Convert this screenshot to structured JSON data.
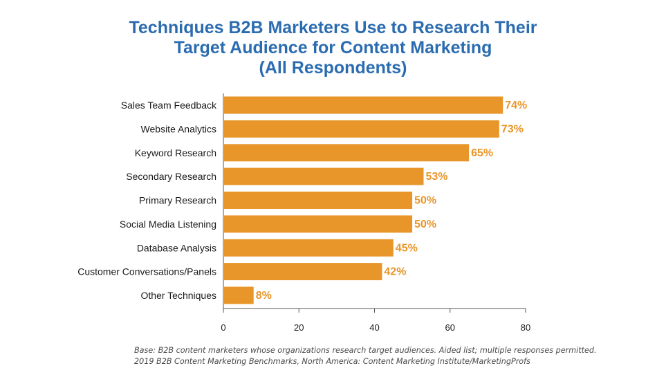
{
  "title": {
    "line1": "Techniques B2B Marketers Use to Research Their",
    "line2": "Target Audience for Content Marketing",
    "line3": "(All Respondents)"
  },
  "chart_data": {
    "type": "bar",
    "orientation": "horizontal",
    "title": "Techniques B2B Marketers Use to Research Their Target Audience for Content Marketing (All Respondents)",
    "categories": [
      "Sales Team Feedback",
      "Website Analytics",
      "Keyword Research",
      "Secondary Research",
      "Primary Research",
      "Social Media Listening",
      "Database Analysis",
      "Customer Conversations/Panels",
      "Other Techniques"
    ],
    "values": [
      74,
      73,
      65,
      53,
      50,
      50,
      45,
      42,
      8
    ],
    "data_labels": [
      "74%",
      "73%",
      "65%",
      "53%",
      "50%",
      "50%",
      "45%",
      "42%",
      "8%"
    ],
    "xlim": [
      0,
      80
    ],
    "x_ticks": [
      0,
      20,
      40,
      60,
      80
    ],
    "x_tick_labels": [
      "0",
      "20",
      "40",
      "60",
      "80"
    ],
    "grid": false,
    "legend": "none",
    "bar_color": "#e8962a",
    "label_color": "#e8962a"
  },
  "footnote": {
    "line1": "Base: B2B content marketers whose organizations research target audiences. Aided list; multiple responses permitted.",
    "line2": "2019 B2B Content Marketing Benchmarks, North America: Content Marketing Institute/MarketingProfs"
  }
}
